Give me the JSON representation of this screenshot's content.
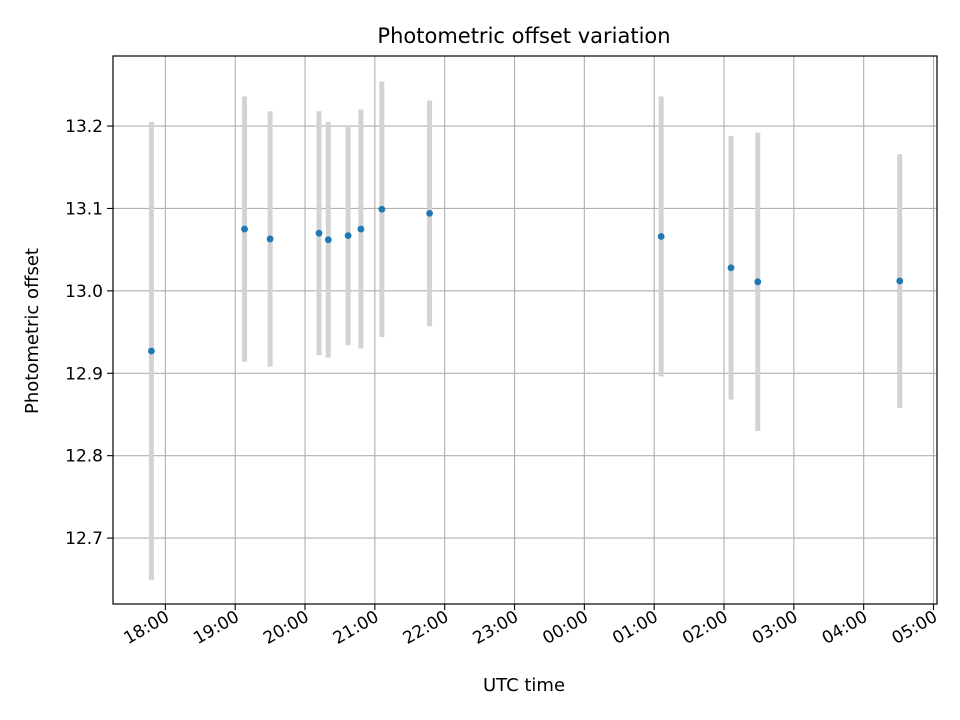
{
  "chart_data": {
    "type": "scatter",
    "title": "Photometric offset variation",
    "xlabel": "UTC time",
    "ylabel": "Photometric offset",
    "x_type": "time",
    "x_range": [
      "17:15",
      "05:03"
    ],
    "ylim": [
      12.62,
      13.285
    ],
    "grid": true,
    "x_ticks": [
      "18:00",
      "19:00",
      "20:00",
      "21:00",
      "22:00",
      "23:00",
      "00:00",
      "01:00",
      "02:00",
      "03:00",
      "04:00",
      "05:00"
    ],
    "y_ticks": [
      "12.7",
      "12.8",
      "12.9",
      "13.0",
      "13.1",
      "13.2"
    ],
    "colors": {
      "point": "#1f77b4",
      "errorbar": "#d3d3d3",
      "grid": "#b0b0b0"
    },
    "points": [
      {
        "time": "17:48",
        "y": 12.927,
        "yerr": 0.278
      },
      {
        "time": "19:08",
        "y": 13.075,
        "yerr": 0.161
      },
      {
        "time": "19:30",
        "y": 13.063,
        "yerr": 0.155
      },
      {
        "time": "20:12",
        "y": 13.07,
        "yerr": 0.148
      },
      {
        "time": "20:20",
        "y": 13.062,
        "yerr": 0.143
      },
      {
        "time": "20:37",
        "y": 13.067,
        "yerr": 0.133
      },
      {
        "time": "20:48",
        "y": 13.075,
        "yerr": 0.145
      },
      {
        "time": "21:06",
        "y": 13.099,
        "yerr": 0.155
      },
      {
        "time": "21:47",
        "y": 13.094,
        "yerr": 0.137
      },
      {
        "time": "01:06",
        "y": 13.066,
        "yerr": 0.17
      },
      {
        "time": "02:06",
        "y": 13.028,
        "yerr": 0.16
      },
      {
        "time": "02:29",
        "y": 13.011,
        "yerr": 0.181
      },
      {
        "time": "04:31",
        "y": 13.012,
        "yerr": 0.154
      }
    ]
  }
}
